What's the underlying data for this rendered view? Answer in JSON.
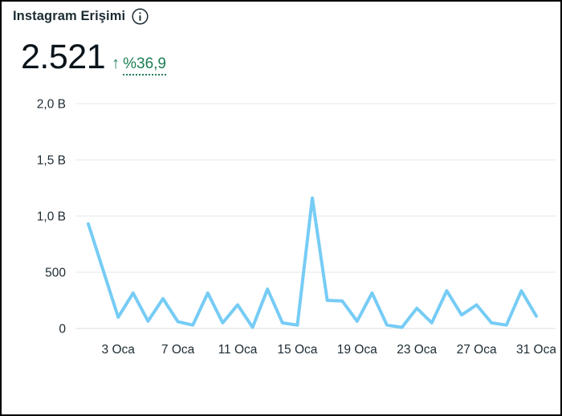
{
  "header": {
    "title": "Instagram Erişimi"
  },
  "metric": {
    "value": "2.521",
    "trend_arrow": "↑",
    "trend_label": "%36,9",
    "trend_color": "#1b7e52"
  },
  "chart_data": {
    "type": "line",
    "title": "Instagram Erişimi",
    "series_name": "Instagram Erişimi",
    "x_unit": "Ocak (day of month)",
    "x": [
      1,
      2,
      3,
      4,
      5,
      6,
      7,
      8,
      9,
      10,
      11,
      12,
      13,
      14,
      15,
      16,
      17,
      18,
      19,
      20,
      21,
      22,
      23,
      24,
      25,
      26,
      27,
      28,
      29,
      30,
      31
    ],
    "values": [
      930,
      515,
      100,
      315,
      65,
      265,
      60,
      30,
      315,
      50,
      210,
      10,
      350,
      50,
      30,
      1160,
      250,
      245,
      65,
      315,
      30,
      10,
      180,
      50,
      335,
      120,
      210,
      50,
      30,
      335,
      110
    ],
    "x_tick_positions": [
      3,
      7,
      11,
      15,
      19,
      23,
      27,
      31
    ],
    "x_tick_labels": [
      "3 Oca",
      "7 Oca",
      "11 Oca",
      "15 Oca",
      "19 Oca",
      "23 Oca",
      "27 Oca",
      "31 Oca"
    ],
    "y_tick_values": [
      0,
      500,
      1000,
      1500,
      2000
    ],
    "y_tick_labels": [
      "0",
      "500",
      "1,0 B",
      "1,5 B",
      "2,0 B"
    ],
    "ylim": [
      0,
      2000
    ],
    "xlabel": "",
    "ylabel": "",
    "grid": "horizontal",
    "legend": "none",
    "line_color": "#76ccf5",
    "grid_color": "#e5e7e9",
    "axis_text_color": "#1c2b33"
  }
}
